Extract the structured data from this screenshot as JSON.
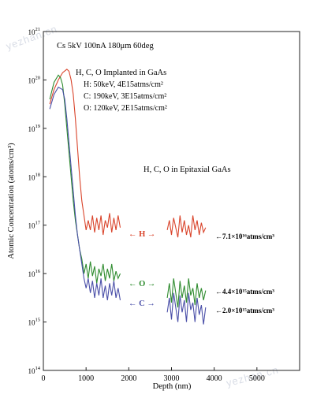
{
  "watermarks": [
    "yezhan.cn",
    "yezhan.cn"
  ],
  "chart_data": {
    "type": "line",
    "xlabel": "Depth (nm)",
    "ylabel": "Atomic Concentration (atoms/cm³)",
    "xlim": [
      0,
      6000
    ],
    "ylim_log10": [
      14,
      21
    ],
    "y_scale": "log",
    "x_ticks": [
      0,
      1000,
      2000,
      3000,
      4000,
      5000
    ],
    "y_tick_labels": [
      {
        "base": "10",
        "exp": "21"
      },
      {
        "base": "10",
        "exp": "20"
      },
      {
        "base": "10",
        "exp": "19"
      },
      {
        "base": "10",
        "exp": "18"
      },
      {
        "base": "10",
        "exp": "17"
      },
      {
        "base": "10",
        "exp": "16"
      },
      {
        "base": "10",
        "exp": "15"
      },
      {
        "base": "10",
        "exp": "14"
      }
    ],
    "annotations": {
      "cond": "Cs 5kV 100nA 180μm 60deg",
      "impl_title": "H, C, O Implanted in GaAs",
      "impl_H": "H:  50keV, 4E15atms/cm²",
      "impl_C": "C:  190keV, 3E15atms/cm²",
      "impl_O": "O:  120keV, 2E15atms/cm²",
      "epi": "H, C, O in Epitaxial GaAs",
      "label_H": "← H →",
      "label_O": "← O →",
      "label_C": "← C →",
      "val_H": "←7.1×10¹⁶atms/cm³",
      "val_O": "←4.4×10¹⁵atms/cm³",
      "val_C": "←2.0×10¹⁵atms/cm³"
    },
    "colors": {
      "H": "#d9442b",
      "O": "#2e8b2e",
      "C": "#4a4fa8"
    },
    "series": [
      {
        "key": "H",
        "implant_profile": {
          "x": [
            150,
            250,
            350,
            450,
            550,
            600,
            650,
            700,
            750,
            800,
            850,
            900,
            950,
            1000,
            1050,
            1100,
            1150,
            1200,
            1250,
            1300,
            1350,
            1400,
            1450,
            1500,
            1550,
            1600,
            1650,
            1700,
            1750,
            1800
          ],
          "log10": [
            19.5,
            19.8,
            20.0,
            20.15,
            20.22,
            20.18,
            20.0,
            19.7,
            19.2,
            18.6,
            18.0,
            17.5,
            17.2,
            16.9,
            17.1,
            16.9,
            17.2,
            16.85,
            17.15,
            16.9,
            17.2,
            16.8,
            17.1,
            16.95,
            17.25,
            16.85,
            17.15,
            16.9,
            17.2,
            16.95
          ]
        },
        "epi_profile": {
          "x": [
            2900,
            2950,
            3000,
            3050,
            3100,
            3150,
            3200,
            3250,
            3300,
            3350,
            3400,
            3450,
            3500,
            3550,
            3600,
            3650,
            3700,
            3750,
            3800
          ],
          "log10": [
            16.9,
            17.1,
            16.8,
            17.15,
            16.95,
            16.75,
            17.2,
            16.85,
            17.1,
            16.8,
            17.0,
            16.75,
            17.2,
            16.9,
            17.1,
            16.8,
            17.05,
            16.85,
            16.95
          ]
        }
      },
      {
        "key": "O",
        "implant_profile": {
          "x": [
            150,
            250,
            350,
            400,
            450,
            500,
            550,
            600,
            650,
            700,
            750,
            800,
            850,
            900,
            950,
            1000,
            1050,
            1100,
            1150,
            1200,
            1250,
            1300,
            1350,
            1400,
            1450,
            1500,
            1550,
            1600,
            1650,
            1700,
            1750,
            1800
          ],
          "log10": [
            19.6,
            19.95,
            20.1,
            20.05,
            19.9,
            19.5,
            19.0,
            18.5,
            18.0,
            17.5,
            17.1,
            16.8,
            16.5,
            16.3,
            16.0,
            16.2,
            15.9,
            16.25,
            15.95,
            16.15,
            15.8,
            16.1,
            15.95,
            16.2,
            15.85,
            16.1,
            15.9,
            16.2,
            15.85,
            16.05,
            15.9,
            16.0
          ]
        },
        "epi_profile": {
          "x": [
            2900,
            2950,
            3000,
            3050,
            3100,
            3150,
            3200,
            3250,
            3300,
            3350,
            3400,
            3450,
            3500,
            3550,
            3600,
            3650,
            3700,
            3750,
            3800
          ],
          "log10": [
            15.5,
            15.8,
            15.4,
            15.9,
            15.6,
            15.3,
            15.85,
            15.5,
            15.75,
            15.4,
            15.9,
            15.55,
            15.7,
            15.35,
            15.8,
            15.5,
            15.7,
            15.45,
            15.65
          ]
        }
      },
      {
        "key": "C",
        "implant_profile": {
          "x": [
            150,
            250,
            350,
            450,
            500,
            550,
            600,
            650,
            700,
            750,
            800,
            850,
            900,
            950,
            1000,
            1050,
            1100,
            1150,
            1200,
            1250,
            1300,
            1350,
            1400,
            1450,
            1500,
            1550,
            1600,
            1650,
            1700,
            1750,
            1800
          ],
          "log10": [
            19.4,
            19.7,
            19.85,
            19.8,
            19.6,
            19.2,
            18.7,
            18.2,
            17.7,
            17.2,
            16.8,
            16.5,
            16.2,
            15.9,
            15.7,
            15.9,
            15.6,
            15.85,
            15.5,
            15.8,
            15.55,
            15.9,
            15.5,
            15.75,
            15.45,
            15.8,
            15.55,
            15.85,
            15.5,
            15.7,
            15.45
          ]
        },
        "epi_profile": {
          "x": [
            2900,
            2950,
            3000,
            3050,
            3100,
            3150,
            3200,
            3250,
            3300,
            3350,
            3400,
            3450,
            3500,
            3550,
            3600,
            3650,
            3700,
            3750,
            3800
          ],
          "log10": [
            15.2,
            15.5,
            15.05,
            15.6,
            15.3,
            15.0,
            15.55,
            15.2,
            15.45,
            15.0,
            15.6,
            15.25,
            15.4,
            15.0,
            15.5,
            15.15,
            15.35,
            14.95,
            15.3
          ]
        }
      }
    ]
  }
}
